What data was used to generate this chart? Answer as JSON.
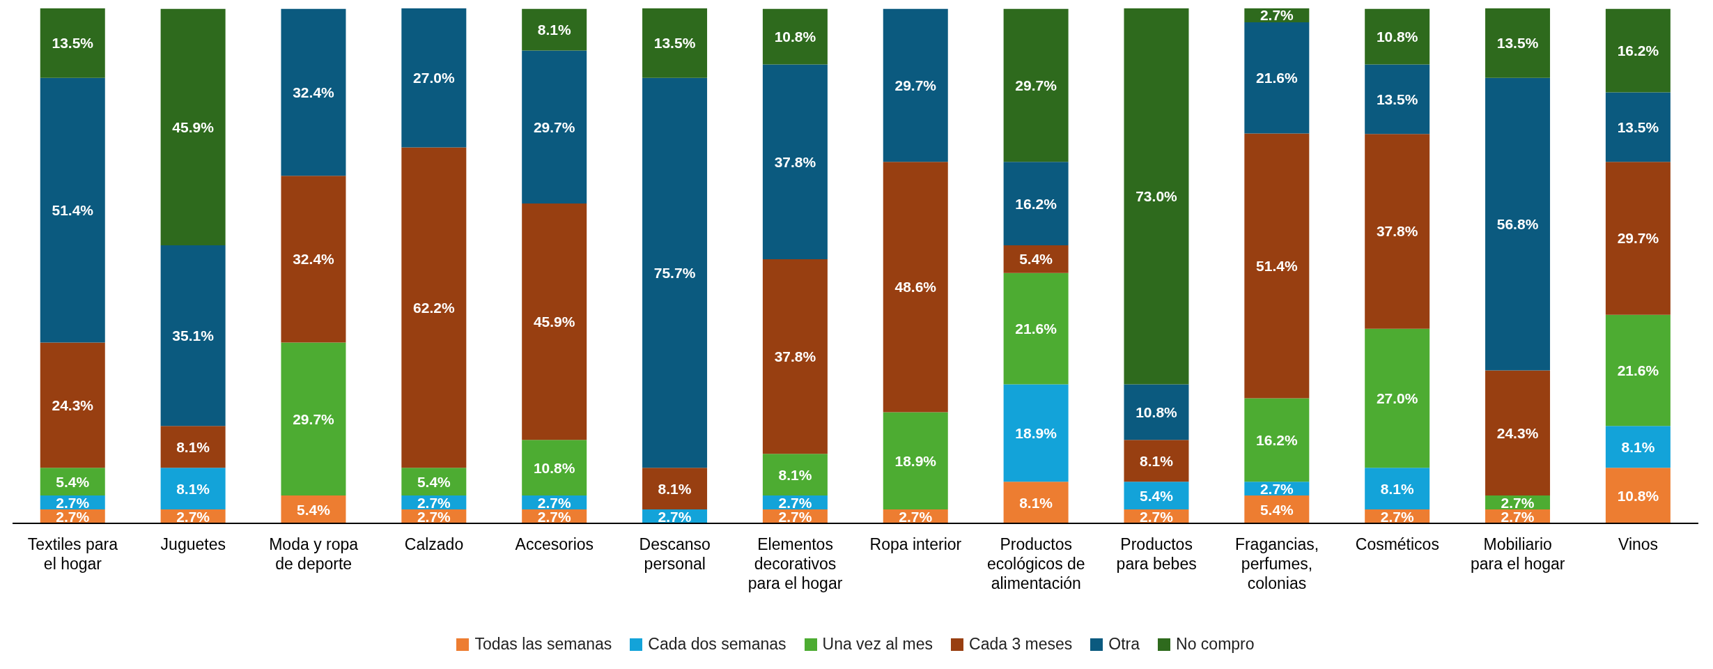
{
  "chart_data": {
    "type": "bar",
    "stacked": true,
    "legend": "bottom",
    "grid": false,
    "categories": [
      "Textiles para el hogar",
      "Juguetes",
      "Moda y ropa de deporte",
      "Calzado",
      "Accesorios",
      "Descanso personal",
      "Elementos decorativos para el hogar",
      "Ropa interior",
      "Productos ecológicos de alimentación",
      "Productos para bebes",
      "Fragancias, perfumes, colonias",
      "Cosméticos",
      "Mobiliario para el hogar",
      "Vinos"
    ],
    "series": [
      {
        "name": "Todas las semanas",
        "color": "#ed7d31",
        "values": [
          2.7,
          2.7,
          5.4,
          2.7,
          2.7,
          null,
          2.7,
          2.7,
          8.1,
          2.7,
          5.4,
          2.7,
          2.7,
          10.8
        ],
        "value_labels": [
          "2.7%",
          "2.7%",
          "5.4%",
          "2.7%",
          "2.7%",
          null,
          "2.7%",
          "2.7%",
          "8.1%",
          "2.7%",
          "5.4%",
          "2.7%",
          "2.7%",
          "10.8%"
        ]
      },
      {
        "name": "Cada dos semanas",
        "color": "#13a3d9",
        "values": [
          2.7,
          8.1,
          null,
          2.7,
          2.7,
          2.7,
          2.7,
          null,
          18.9,
          5.4,
          2.7,
          8.1,
          null,
          8.1
        ],
        "value_labels": [
          "2.7%",
          "8.1%",
          null,
          "2.7%",
          "2.7%",
          "2.7%",
          "2.7%",
          null,
          "18.9%",
          "5.4%",
          "2.7%",
          "8.1%",
          null,
          "8.1%"
        ]
      },
      {
        "name": "Una vez al mes",
        "color": "#4dac32",
        "values": [
          5.4,
          null,
          29.7,
          5.4,
          10.8,
          null,
          8.1,
          18.9,
          21.6,
          null,
          16.2,
          27.0,
          2.7,
          21.6
        ],
        "value_labels": [
          "5.4%",
          null,
          "29.7%",
          "5.4%",
          "10.8%",
          null,
          "8.1%",
          "18.9%",
          "21.6%",
          null,
          "16.2%",
          "27.0%",
          "2.7%",
          "21.6%"
        ]
      },
      {
        "name": "Cada 3 meses",
        "color": "#983f11",
        "values": [
          24.3,
          8.1,
          32.4,
          62.2,
          45.9,
          8.1,
          37.8,
          48.6,
          5.4,
          8.1,
          51.4,
          37.8,
          24.3,
          29.7
        ],
        "value_labels": [
          "24.3%",
          "8.1%",
          "32.4%",
          "62.2%",
          "45.9%",
          "8.1%",
          "37.8%",
          "48.6%",
          "5.4%",
          "8.1%",
          "51.4%",
          "37.8%",
          "24.3%",
          "29.7%"
        ]
      },
      {
        "name": "Otra",
        "color": "#0b5a7f",
        "values": [
          51.4,
          35.1,
          32.4,
          27.0,
          29.7,
          75.7,
          37.8,
          29.7,
          16.2,
          10.8,
          21.6,
          13.5,
          56.8,
          13.5
        ],
        "value_labels": [
          "51.4%",
          "35.1%",
          "32.4%",
          "27.0%",
          "29.7%",
          "75.7%",
          "37.8%",
          "29.7%",
          "16.2%",
          "10.8%",
          "21.6%",
          "13.5%",
          "56.8%",
          "13.5%"
        ]
      },
      {
        "name": "No compro",
        "color": "#2e6a1d",
        "values": [
          13.5,
          45.9,
          null,
          null,
          8.1,
          13.5,
          10.8,
          null,
          29.7,
          73.0,
          2.7,
          10.8,
          13.5,
          16.2
        ],
        "value_labels": [
          "13.5%",
          "45.9%",
          null,
          null,
          "8.1%",
          "13.5%",
          "10.8%",
          null,
          "29.7%",
          "73.0%",
          "2.7%",
          "10.8%",
          "13.5%",
          "16.2%"
        ]
      }
    ]
  }
}
